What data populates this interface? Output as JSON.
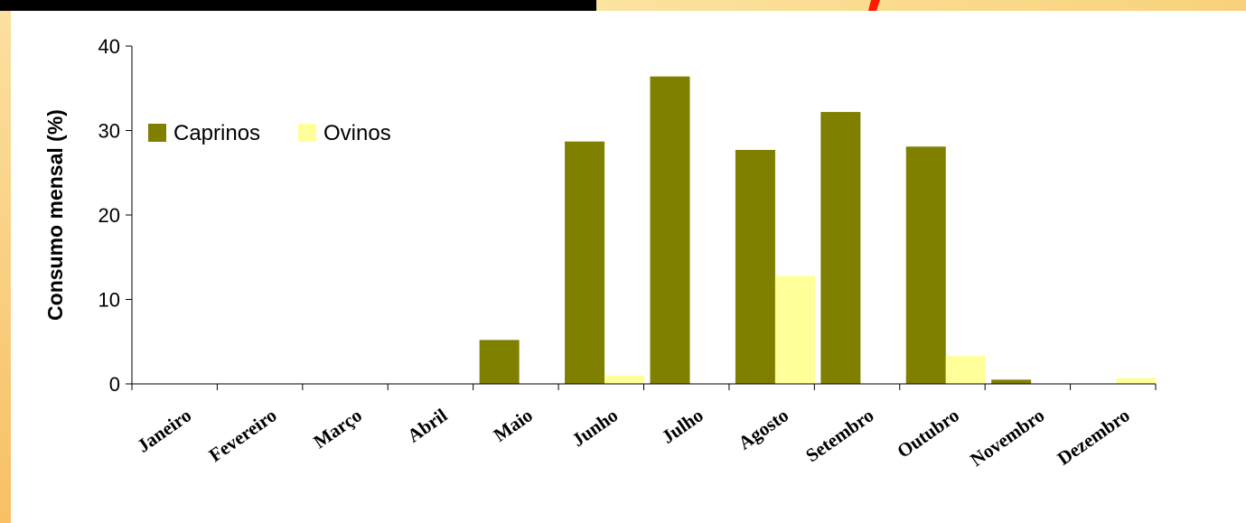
{
  "chart_data": {
    "type": "bar",
    "ylabel": "Consumo mensal (%)",
    "xlabel": "",
    "ylim": [
      0,
      40
    ],
    "yticks": [
      0,
      10,
      20,
      30,
      40
    ],
    "categories": [
      "Janeiro",
      "Fevereiro",
      "Março",
      "Abril",
      "Maio",
      "Junho",
      "Julho",
      "Agosto",
      "Setembro",
      "Outubro",
      "Novembro",
      "Dezembro"
    ],
    "series": [
      {
        "name": "Caprinos",
        "color": "#808000",
        "values": [
          0,
          0,
          0,
          0,
          5.2,
          28.7,
          36.4,
          27.7,
          32.2,
          28.1,
          0.5,
          0
        ]
      },
      {
        "name": "Ovinos",
        "color": "#ffff99",
        "values": [
          0,
          0,
          0,
          0,
          0,
          1.0,
          0,
          12.8,
          0,
          3.3,
          0,
          0.7
        ]
      }
    ],
    "legend_position": "upper-left",
    "grid": false
  }
}
